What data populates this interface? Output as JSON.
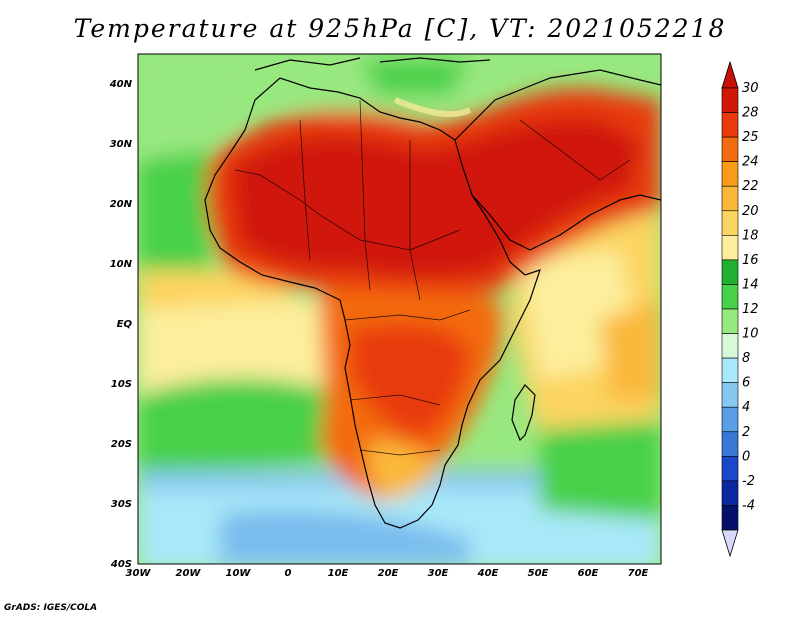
{
  "title": "Temperature at 925hPa [C], VT: 2021052218",
  "credit": "GrADS: IGES/COLA",
  "map": {
    "lon_labels": [
      "30W",
      "20W",
      "10W",
      "0",
      "10E",
      "20E",
      "30E",
      "40E",
      "50E",
      "60E",
      "70E"
    ],
    "lat_labels": [
      "40N",
      "30N",
      "20N",
      "10N",
      "EQ",
      "10S",
      "20S",
      "30S",
      "40S"
    ]
  },
  "colorbar": {
    "labels": [
      "30",
      "28",
      "25",
      "24",
      "22",
      "20",
      "18",
      "16",
      "14",
      "12",
      "10",
      "8",
      "6",
      "4",
      "2",
      "0",
      "-2",
      "-4"
    ],
    "colors": [
      "#d01808",
      "#e83a0a",
      "#f46a10",
      "#f89a1a",
      "#fab83a",
      "#fcd460",
      "#fcee9c",
      "#20b030",
      "#48d048",
      "#98e880",
      "#d8f8d8",
      "#a8e8f8",
      "#88c8f0",
      "#5a9ee8",
      "#3a78d8",
      "#1a48c8",
      "#0a28a0",
      "#06106a"
    ]
  }
}
